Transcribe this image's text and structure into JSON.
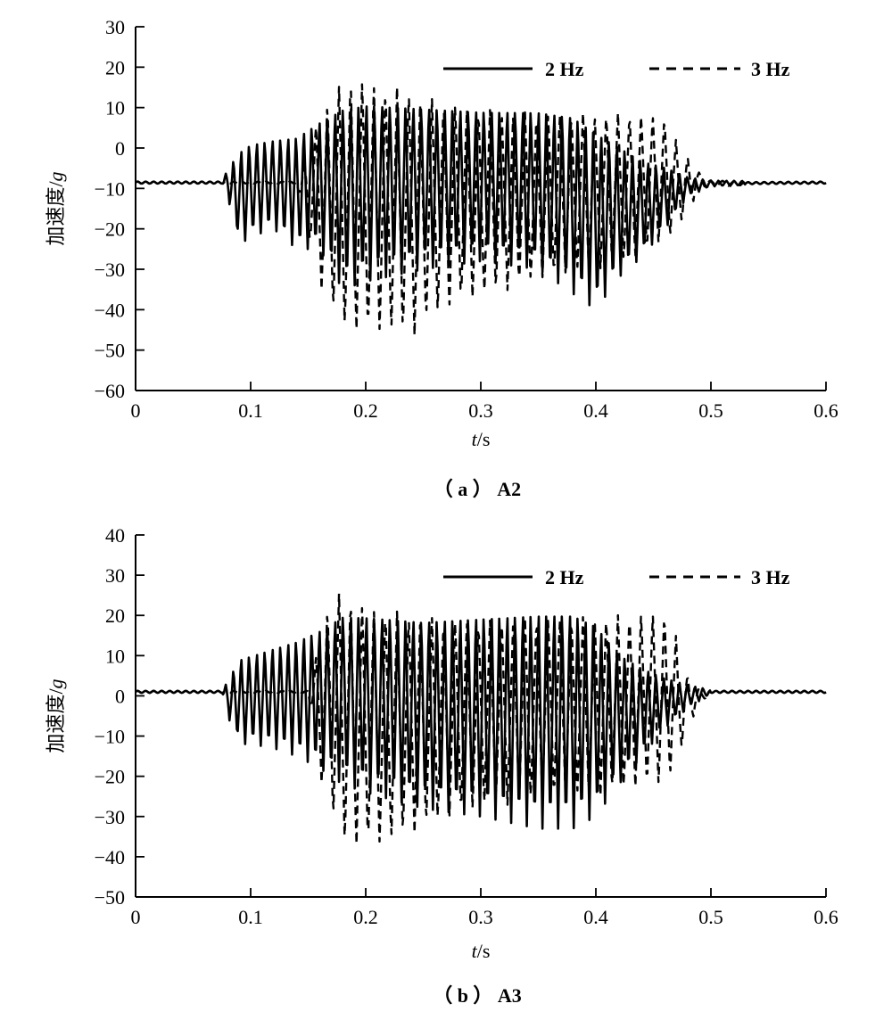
{
  "chart_data": [
    {
      "id": "A2",
      "type": "line",
      "caption": "（ a ） A2",
      "xlabel_var": "t",
      "xlabel_unit": "/s",
      "ylabel_text": "加速度/",
      "ylabel_unit": "g",
      "xlim": [
        0,
        0.6
      ],
      "ylim": [
        -60,
        30
      ],
      "xticks": [
        0,
        0.1,
        0.2,
        0.3,
        0.4,
        0.5,
        0.6
      ],
      "xtick_labels": [
        "0",
        "0.1",
        "0.2",
        "0.3",
        "0.4",
        "0.5",
        "0.6"
      ],
      "yticks": [
        30,
        20,
        10,
        0,
        -10,
        -20,
        -30,
        -40,
        -50,
        -60
      ],
      "ytick_labels": [
        "30",
        "20",
        "10",
        "0",
        "−10",
        "−20",
        "−30",
        "−40",
        "−50",
        "−60"
      ],
      "grid": false,
      "legend_position": "top-right",
      "series": [
        {
          "name": "2 Hz",
          "style": "solid",
          "baseline": -8.5,
          "envelope": [
            [
              0.0,
              -8.3,
              -8.8
            ],
            [
              0.075,
              -8.3,
              -8.8
            ],
            [
              0.08,
              -5,
              -12
            ],
            [
              0.09,
              0,
              -24
            ],
            [
              0.1,
              2,
              -22
            ],
            [
              0.12,
              3,
              -20
            ],
            [
              0.14,
              4,
              -25
            ],
            [
              0.16,
              8,
              -25
            ],
            [
              0.18,
              12,
              -35
            ],
            [
              0.2,
              13,
              -33
            ],
            [
              0.25,
              12,
              -30
            ],
            [
              0.3,
              11,
              -28
            ],
            [
              0.35,
              11,
              -30
            ],
            [
              0.38,
              10,
              -36
            ],
            [
              0.4,
              6,
              -40
            ],
            [
              0.42,
              2,
              -32
            ],
            [
              0.44,
              -2,
              -27
            ],
            [
              0.46,
              -4,
              -20
            ],
            [
              0.48,
              -7,
              -12
            ],
            [
              0.5,
              -8,
              -9.5
            ],
            [
              0.6,
              -8.3,
              -8.8
            ]
          ]
        },
        {
          "name": "3 Hz",
          "style": "dashed",
          "baseline": -8.5,
          "envelope": [
            [
              0.0,
              -8.3,
              -8.8
            ],
            [
              0.14,
              -8.3,
              -8.8
            ],
            [
              0.15,
              0,
              -22
            ],
            [
              0.16,
              10,
              -34
            ],
            [
              0.17,
              13,
              -40
            ],
            [
              0.18,
              17,
              -45
            ],
            [
              0.19,
              19,
              -46
            ],
            [
              0.2,
              17,
              -46
            ],
            [
              0.22,
              16,
              -46
            ],
            [
              0.24,
              15,
              -47
            ],
            [
              0.25,
              13,
              -44
            ],
            [
              0.27,
              12,
              -40
            ],
            [
              0.3,
              10,
              -37
            ],
            [
              0.35,
              9,
              -33
            ],
            [
              0.4,
              9,
              -30
            ],
            [
              0.43,
              9,
              -28
            ],
            [
              0.46,
              8,
              -23
            ],
            [
              0.47,
              2,
              -21
            ],
            [
              0.48,
              -2,
              -16
            ],
            [
              0.49,
              -6,
              -10
            ],
            [
              0.5,
              -8,
              -9.5
            ],
            [
              0.6,
              -8.3,
              -8.8
            ]
          ]
        }
      ]
    },
    {
      "id": "A3",
      "type": "line",
      "caption": "（ b ） A3",
      "xlabel_var": "t",
      "xlabel_unit": "/s",
      "ylabel_text": "加速度/",
      "ylabel_unit": "g",
      "xlim": [
        0,
        0.6
      ],
      "ylim": [
        -50,
        40
      ],
      "xticks": [
        0,
        0.1,
        0.2,
        0.3,
        0.4,
        0.5,
        0.6
      ],
      "xtick_labels": [
        "0",
        "0.1",
        "0.2",
        "0.3",
        "0.4",
        "0.5",
        "0.6"
      ],
      "yticks": [
        40,
        30,
        20,
        10,
        0,
        -10,
        -20,
        -30,
        -40,
        -50
      ],
      "ytick_labels": [
        "40",
        "30",
        "20",
        "10",
        "0",
        "−10",
        "−20",
        "−30",
        "−40",
        "−50"
      ],
      "grid": false,
      "legend_position": "top-right",
      "series": [
        {
          "name": "2 Hz",
          "style": "solid",
          "baseline": 1,
          "envelope": [
            [
              0.0,
              1.3,
              0.7
            ],
            [
              0.075,
              1.3,
              0.7
            ],
            [
              0.08,
              4,
              -5
            ],
            [
              0.09,
              10,
              -12
            ],
            [
              0.1,
              11,
              -12
            ],
            [
              0.12,
              13,
              -13
            ],
            [
              0.14,
              15,
              -15
            ],
            [
              0.16,
              18,
              -18
            ],
            [
              0.18,
              22,
              -22
            ],
            [
              0.2,
              22,
              -24
            ],
            [
              0.25,
              21,
              -28
            ],
            [
              0.3,
              22,
              -30
            ],
            [
              0.35,
              23,
              -33
            ],
            [
              0.38,
              23,
              -33
            ],
            [
              0.4,
              20,
              -30
            ],
            [
              0.42,
              12,
              -22
            ],
            [
              0.44,
              8,
              -15
            ],
            [
              0.46,
              5,
              -8
            ],
            [
              0.48,
              3,
              -3
            ],
            [
              0.5,
              1.5,
              0.5
            ],
            [
              0.6,
              1.3,
              0.7
            ]
          ]
        },
        {
          "name": "3 Hz",
          "style": "dashed",
          "baseline": 1,
          "envelope": [
            [
              0.0,
              1.3,
              0.7
            ],
            [
              0.15,
              1.3,
              0.7
            ],
            [
              0.16,
              15,
              -20
            ],
            [
              0.17,
              26,
              -30
            ],
            [
              0.18,
              26,
              -37
            ],
            [
              0.19,
              25,
              -38
            ],
            [
              0.2,
              23,
              -38
            ],
            [
              0.22,
              22,
              -37
            ],
            [
              0.25,
              20,
              -33
            ],
            [
              0.3,
              19,
              -28
            ],
            [
              0.35,
              20,
              -26
            ],
            [
              0.4,
              20,
              -25
            ],
            [
              0.44,
              21,
              -23
            ],
            [
              0.46,
              21,
              -22
            ],
            [
              0.47,
              15,
              -18
            ],
            [
              0.48,
              5,
              -8
            ],
            [
              0.49,
              2,
              -2
            ],
            [
              0.5,
              1.5,
              0.5
            ],
            [
              0.6,
              1.3,
              0.7
            ]
          ]
        }
      ]
    }
  ]
}
